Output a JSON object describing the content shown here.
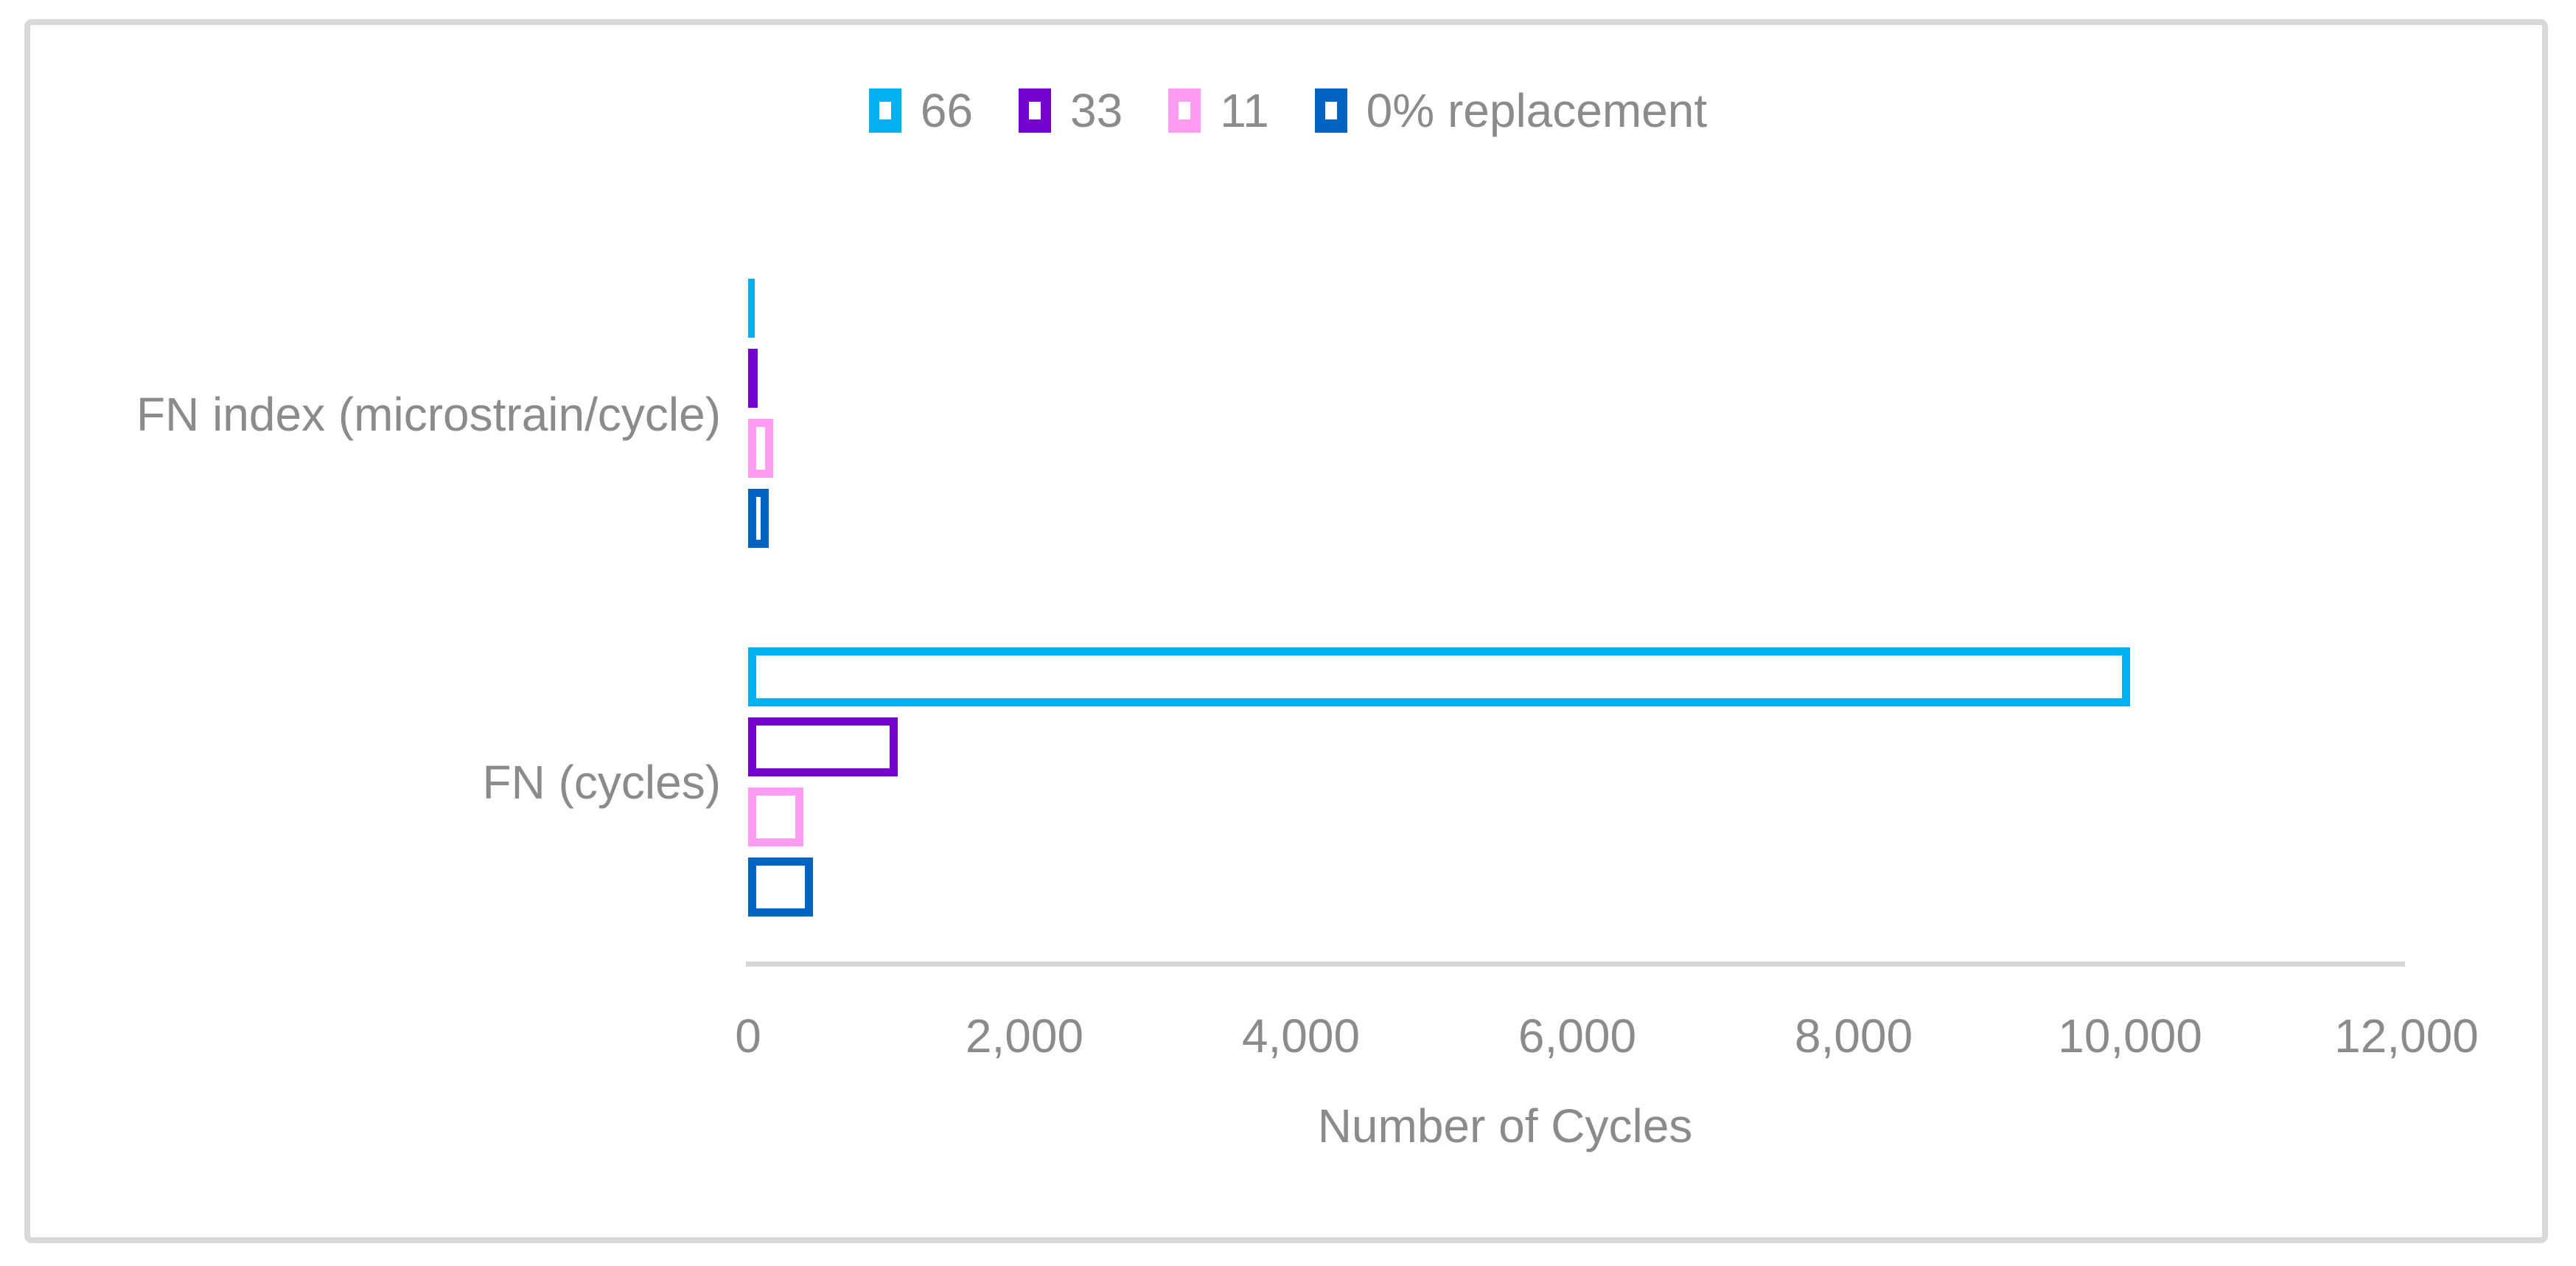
{
  "figure": {
    "background": "#FFFFFF",
    "border_color": "#D9D9D9",
    "text_color": "#8B8B8B",
    "axis_line_color": "#D6D6D6"
  },
  "chart_data": {
    "type": "bar",
    "orientation": "horizontal",
    "title": "",
    "xlabel": "Number of Cycles",
    "ylabel": "",
    "categories": [
      "FN index (microstrain/cycle)",
      "FN (cycles)"
    ],
    "series": [
      {
        "name": "66",
        "color": "#00B0F0",
        "values": [
          50,
          10000
        ]
      },
      {
        "name": "33",
        "color": "#7403D0",
        "values": [
          70,
          1080
        ]
      },
      {
        "name": "11",
        "color": "#FF9DF3",
        "values": [
          180,
          400
        ]
      },
      {
        "name": "0% replacement",
        "color": "#0264C2",
        "values": [
          150,
          470
        ]
      }
    ],
    "xlim": [
      0,
      12000
    ],
    "xticks": [
      0,
      2000,
      4000,
      6000,
      8000,
      10000,
      12000
    ],
    "xtick_labels": [
      "0",
      "2,000",
      "4,000",
      "6,000",
      "8,000",
      "10,000",
      "12,000"
    ],
    "legend_position": "top-center",
    "legend_entries": [
      "66",
      "33",
      "11",
      "0% replacement"
    ],
    "bar_style": "hollow-outlined",
    "grid": false
  }
}
